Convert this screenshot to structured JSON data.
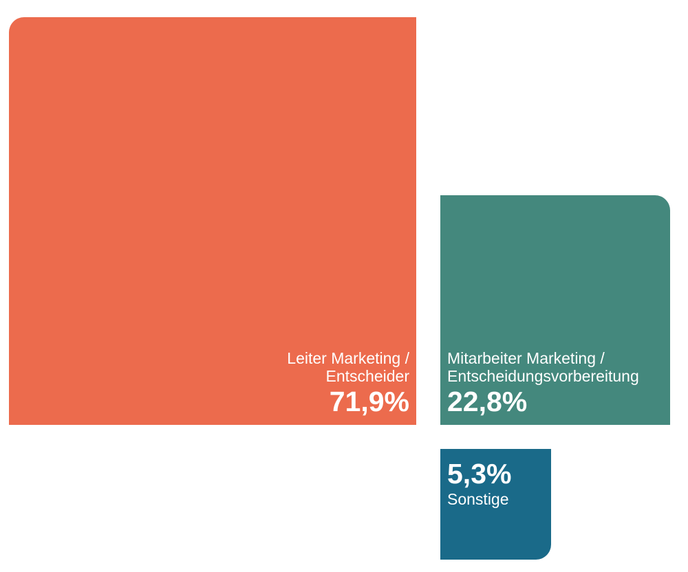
{
  "chart_data": {
    "type": "treemap",
    "title": "",
    "series": [
      {
        "label_lines": [
          "Leiter Marketing /",
          "Entscheider"
        ],
        "value": 71.9,
        "value_text": "71,9%",
        "color": "#ec6b4d"
      },
      {
        "label_lines": [
          "Mitarbeiter Marketing /",
          "Entscheidungsvorbereitung"
        ],
        "value": 22.8,
        "value_text": "22,8%",
        "color": "#44887d"
      },
      {
        "label_lines": [
          "Sonstige"
        ],
        "value": 5.3,
        "value_text": "5,3%",
        "color": "#1a6a89"
      }
    ]
  }
}
